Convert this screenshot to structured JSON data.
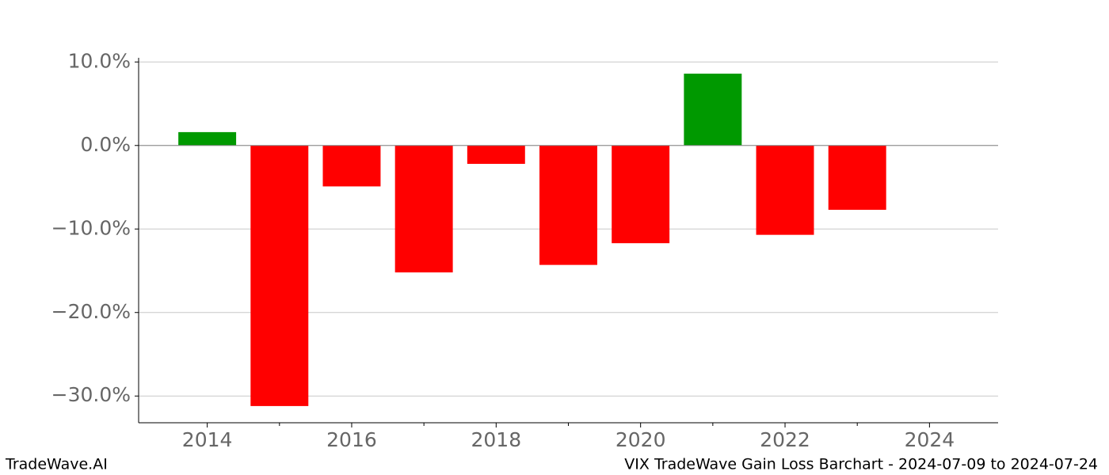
{
  "chart_data": {
    "type": "bar",
    "x": [
      2014,
      2015,
      2016,
      2017,
      2018,
      2019,
      2020,
      2021,
      2022,
      2023
    ],
    "values": [
      1.6,
      -31.2,
      -4.9,
      -15.2,
      -2.2,
      -14.3,
      -11.7,
      8.6,
      -10.7,
      -7.7
    ],
    "positive_color": "#009900",
    "negative_color": "#ff0000",
    "xlim": [
      2013.05,
      2024.95
    ],
    "xticks": [
      2014,
      2016,
      2018,
      2020,
      2022,
      2024
    ],
    "xminorticks": [
      2015,
      2017,
      2019,
      2021,
      2023
    ],
    "ylim": [
      -33.2,
      10.5
    ],
    "yticks": [
      {
        "value": -30,
        "label": "−30.0%"
      },
      {
        "value": -20,
        "label": "−20.0%"
      },
      {
        "value": -10,
        "label": "−10.0%"
      },
      {
        "value": 0,
        "label": "0.0%"
      },
      {
        "value": 10,
        "label": "10.0%"
      }
    ],
    "grid": true,
    "footer_left": "TradeWave.AI",
    "footer_right": "VIX TradeWave Gain Loss Barchart - 2024-07-09 to 2024-07-24"
  }
}
